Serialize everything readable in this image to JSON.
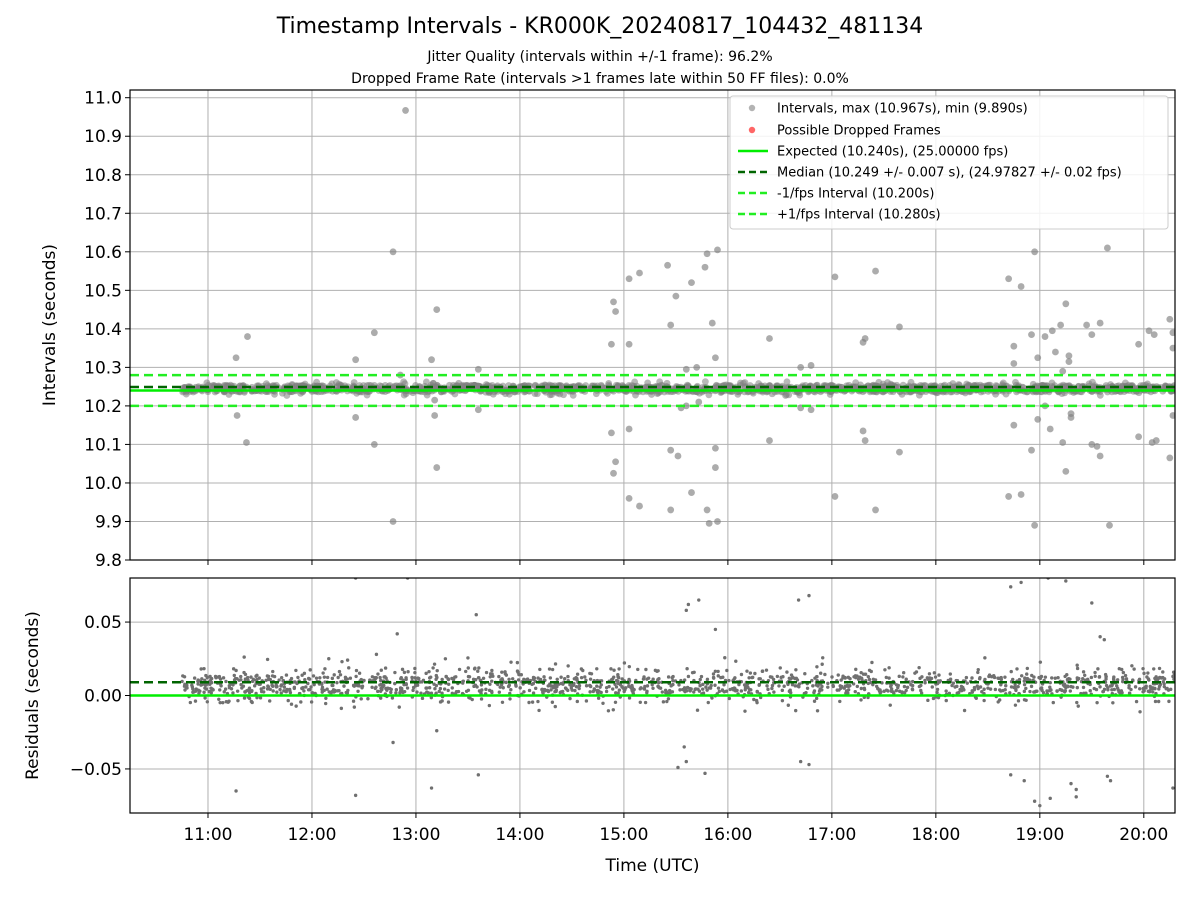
{
  "title": "Timestamp Intervals - KR000K_20240817_104432_481134",
  "subtitle_1": "Jitter Quality (intervals within +/-1 frame): 96.2%",
  "subtitle_2": "Dropped Frame Rate (intervals >1 frames late within 50 FF files): 0.0%",
  "colors": {
    "scatter_gray": "#808080",
    "dropped_red": "#ff4040",
    "expected_green": "#00ee00",
    "median_darkgreen": "#006400",
    "fps_interval_green": "#22ee22",
    "grid": "#b0b0b0"
  },
  "chart_data": [
    {
      "type": "scatter",
      "panel": "top",
      "ylabel": "Intervals (seconds)",
      "ylim": [
        9.8,
        11.02
      ],
      "yticks": [
        "9.8",
        "9.9",
        "10.0",
        "10.1",
        "10.2",
        "10.3",
        "10.4",
        "10.5",
        "10.6",
        "10.7",
        "10.8",
        "10.9",
        "11.0"
      ],
      "xlim_hours": [
        10.25,
        20.3
      ],
      "grid": true,
      "legend_position": "top-right",
      "legend": [
        "Intervals, max (10.967s), min (9.890s)",
        "Possible Dropped Frames",
        "Expected (10.240s), (25.00000 fps)",
        "Median (10.249 +/- 0.007 s), (24.97827 +/- 0.02 fps)",
        "-1/fps Interval (10.200s)",
        "+1/fps Interval (10.280s)"
      ],
      "lines": {
        "expected": 10.24,
        "median": 10.249,
        "minus_fps": 10.2,
        "plus_fps": 10.28
      },
      "dense_band": {
        "x_start": 10.75,
        "x_end": 20.3,
        "center": 10.245,
        "half_width": 0.015
      },
      "outliers": [
        [
          11.27,
          10.325
        ],
        [
          11.38,
          10.38
        ],
        [
          11.28,
          10.175
        ],
        [
          11.37,
          10.105
        ],
        [
          12.42,
          10.32
        ],
        [
          12.42,
          10.17
        ],
        [
          12.6,
          10.39
        ],
        [
          12.6,
          10.1
        ],
        [
          12.78,
          10.6
        ],
        [
          12.78,
          9.9
        ],
        [
          12.85,
          10.28
        ],
        [
          12.9,
          10.967
        ],
        [
          13.15,
          10.32
        ],
        [
          13.2,
          10.45
        ],
        [
          13.18,
          10.215
        ],
        [
          13.18,
          10.175
        ],
        [
          13.2,
          10.04
        ],
        [
          13.6,
          10.295
        ],
        [
          13.6,
          10.19
        ],
        [
          14.88,
          10.36
        ],
        [
          14.88,
          10.13
        ],
        [
          14.9,
          10.47
        ],
        [
          14.92,
          10.445
        ],
        [
          14.92,
          10.055
        ],
        [
          14.9,
          10.025
        ],
        [
          15.05,
          10.53
        ],
        [
          15.05,
          10.36
        ],
        [
          15.05,
          10.14
        ],
        [
          15.05,
          9.96
        ],
        [
          15.15,
          10.545
        ],
        [
          15.15,
          9.94
        ],
        [
          15.42,
          10.565
        ],
        [
          15.45,
          10.41
        ],
        [
          15.45,
          10.085
        ],
        [
          15.45,
          9.93
        ],
        [
          15.5,
          10.485
        ],
        [
          15.55,
          10.195
        ],
        [
          15.52,
          10.07
        ],
        [
          15.6,
          10.295
        ],
        [
          15.6,
          10.2
        ],
        [
          15.65,
          10.52
        ],
        [
          15.65,
          9.975
        ],
        [
          15.7,
          10.3
        ],
        [
          15.72,
          10.21
        ],
        [
          15.78,
          10.56
        ],
        [
          15.8,
          10.595
        ],
        [
          15.8,
          9.93
        ],
        [
          15.82,
          9.895
        ],
        [
          15.85,
          10.415
        ],
        [
          15.88,
          10.325
        ],
        [
          15.88,
          10.09
        ],
        [
          15.88,
          10.04
        ],
        [
          15.9,
          10.605
        ],
        [
          15.9,
          9.9
        ],
        [
          16.4,
          10.375
        ],
        [
          16.4,
          10.11
        ],
        [
          16.7,
          10.3
        ],
        [
          16.7,
          10.195
        ],
        [
          16.8,
          10.305
        ],
        [
          16.8,
          10.19
        ],
        [
          17.03,
          10.535
        ],
        [
          17.03,
          9.965
        ],
        [
          17.3,
          10.365
        ],
        [
          17.32,
          10.375
        ],
        [
          17.3,
          10.135
        ],
        [
          17.32,
          10.11
        ],
        [
          17.42,
          10.55
        ],
        [
          17.42,
          9.93
        ],
        [
          17.65,
          10.405
        ],
        [
          17.65,
          10.08
        ],
        [
          18.7,
          10.53
        ],
        [
          18.7,
          9.965
        ],
        [
          18.75,
          10.31
        ],
        [
          18.75,
          10.355
        ],
        [
          18.75,
          10.15
        ],
        [
          18.82,
          10.51
        ],
        [
          18.82,
          9.97
        ],
        [
          18.92,
          10.385
        ],
        [
          18.92,
          10.085
        ],
        [
          18.95,
          10.6
        ],
        [
          18.95,
          9.89
        ],
        [
          18.98,
          10.325
        ],
        [
          18.98,
          10.165
        ],
        [
          19.05,
          10.38
        ],
        [
          19.05,
          10.2
        ],
        [
          19.1,
          10.14
        ],
        [
          19.12,
          10.395
        ],
        [
          19.15,
          10.34
        ],
        [
          19.2,
          10.41
        ],
        [
          19.22,
          10.29
        ],
        [
          19.22,
          10.105
        ],
        [
          19.25,
          10.465
        ],
        [
          19.25,
          10.03
        ],
        [
          19.28,
          10.33
        ],
        [
          19.28,
          10.315
        ],
        [
          19.3,
          10.18
        ],
        [
          19.3,
          10.17
        ],
        [
          19.45,
          10.41
        ],
        [
          19.5,
          10.385
        ],
        [
          19.5,
          10.1
        ],
        [
          19.55,
          10.095
        ],
        [
          19.58,
          10.415
        ],
        [
          19.58,
          10.07
        ],
        [
          19.65,
          10.61
        ],
        [
          19.67,
          9.89
        ],
        [
          19.95,
          10.36
        ],
        [
          19.95,
          10.12
        ],
        [
          20.05,
          10.395
        ],
        [
          20.1,
          10.385
        ],
        [
          20.08,
          10.105
        ],
        [
          20.12,
          10.11
        ],
        [
          20.25,
          10.425
        ],
        [
          20.28,
          10.39
        ],
        [
          20.28,
          10.35
        ],
        [
          20.25,
          10.065
        ],
        [
          20.28,
          10.175
        ]
      ]
    },
    {
      "type": "scatter",
      "panel": "bottom",
      "xlabel": "Time (UTC)",
      "ylabel": "Residuals (seconds)",
      "ylim": [
        -0.08,
        0.08
      ],
      "yticks": [
        "−0.05",
        "0.00",
        "0.05"
      ],
      "ytick_values": [
        -0.05,
        0.0,
        0.05
      ],
      "xticks": [
        "11:00",
        "12:00",
        "13:00",
        "14:00",
        "15:00",
        "16:00",
        "17:00",
        "18:00",
        "19:00",
        "20:00"
      ],
      "xtick_hours": [
        11,
        12,
        13,
        14,
        15,
        16,
        17,
        18,
        19,
        20
      ],
      "xlim_hours": [
        10.25,
        20.3
      ],
      "grid": true,
      "lines": {
        "expected_residual": 0.0,
        "median_residual": 0.009
      },
      "dense_band": {
        "x_start": 10.75,
        "x_end": 20.3,
        "center": 0.007,
        "half_width": 0.012
      },
      "outliers": [
        [
          11.27,
          -0.065
        ],
        [
          12.42,
          -0.068
        ],
        [
          12.62,
          0.028
        ],
        [
          12.78,
          -0.032
        ],
        [
          12.82,
          0.042
        ],
        [
          12.92,
          0.08
        ],
        [
          13.15,
          -0.063
        ],
        [
          13.2,
          -0.024
        ],
        [
          13.58,
          0.055
        ],
        [
          13.6,
          -0.054
        ],
        [
          15.58,
          -0.035
        ],
        [
          15.52,
          -0.049
        ],
        [
          15.6,
          -0.045
        ],
        [
          15.6,
          0.058
        ],
        [
          15.62,
          0.062
        ],
        [
          15.72,
          0.065
        ],
        [
          15.78,
          -0.053
        ],
        [
          15.88,
          0.045
        ],
        [
          16.68,
          0.065
        ],
        [
          16.7,
          -0.045
        ],
        [
          16.78,
          0.068
        ],
        [
          16.78,
          -0.047
        ],
        [
          18.72,
          0.074
        ],
        [
          18.72,
          -0.054
        ],
        [
          18.82,
          0.077
        ],
        [
          18.85,
          -0.058
        ],
        [
          18.95,
          -0.072
        ],
        [
          19.0,
          -0.075
        ],
        [
          19.08,
          0.08
        ],
        [
          19.1,
          -0.07
        ],
        [
          19.25,
          0.078
        ],
        [
          19.3,
          -0.06
        ],
        [
          19.35,
          -0.064
        ],
        [
          19.35,
          -0.069
        ],
        [
          19.5,
          0.063
        ],
        [
          19.58,
          0.04
        ],
        [
          19.62,
          0.038
        ],
        [
          19.65,
          -0.055
        ],
        [
          19.68,
          -0.058
        ],
        [
          20.28,
          -0.063
        ],
        [
          12.42,
          0.08
        ]
      ]
    }
  ]
}
